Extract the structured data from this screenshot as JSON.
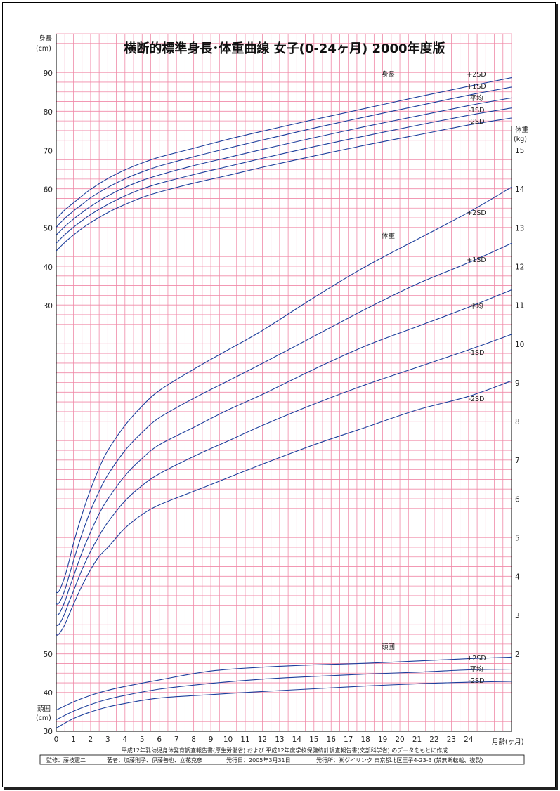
{
  "title": "横断的標準身長･体重曲線 女子(0-24ヶ月) 2000年度版",
  "axes": {
    "length_label_1": "身長",
    "length_label_2": "(cm)",
    "weight_label_1": "体重",
    "weight_label_2": "(kg)",
    "head_label_1": "頭囲",
    "head_label_2": "(cm)",
    "x_label": "月齢(ヶ月)"
  },
  "footer": {
    "line1": "平成12年乳幼児身体発育調査報告書(厚生労働省) および 平成12年度学校保健統計調査報告書(文部科学省) のデータをもとに作成",
    "supervisor": "監修：藤枝憲二",
    "authors": "著者：加藤則子、伊藤善也、立花克彦",
    "date": "発行日：2005年3月31日",
    "publisher": "発行所：㈱ヴイリンク 東京都北区王子4-23-3 (禁無断転載、複製)"
  },
  "colors": {
    "grid": "#f08aa8",
    "curve": "#1d3f9c",
    "frame": "#000000"
  },
  "chart_data": {
    "type": "line",
    "title": "横断的標準身長･体重曲線 女子(0-24ヶ月) 2000年度版",
    "x_label": "月齢(ヶ月)",
    "x_ticks": [
      "0",
      "1",
      "2",
      "3",
      "4",
      "5",
      "6",
      "7",
      "8",
      "9",
      "10",
      "11",
      "12",
      "13",
      "14",
      "15",
      "16",
      "17",
      "18",
      "19",
      "20",
      "21",
      "22",
      "23",
      "24"
    ],
    "xlim": [
      0,
      26.5
    ],
    "grid": true,
    "panels": [
      {
        "name": "身長",
        "unit": "(cm)",
        "ylim": [
          30,
          95
        ],
        "y_ticks": [
          "30",
          "40",
          "50",
          "60",
          "70",
          "80",
          "90"
        ],
        "x": [
          0,
          0.5,
          1,
          1.5,
          2,
          3,
          4,
          5,
          6,
          8,
          10,
          12,
          15,
          18,
          21,
          24,
          26.5
        ],
        "series": [
          {
            "name": "+2SD",
            "values": [
              52.4,
              54.7,
              56.5,
              58.3,
              60.0,
              62.8,
              65.0,
              66.8,
              68.3,
              70.6,
              72.9,
              75.0,
              78.0,
              80.9,
              83.8,
              86.6,
              88.8
            ]
          },
          {
            "name": "+1SD",
            "values": [
              50.2,
              52.5,
              54.4,
              56.1,
              57.8,
              60.5,
              62.7,
              64.5,
              66.0,
              68.4,
              70.6,
              72.7,
              75.8,
              78.7,
              81.5,
              84.3,
              86.4
            ]
          },
          {
            "name": "平均",
            "values": [
              48.2,
              50.4,
              52.3,
              54.0,
              55.6,
              58.3,
              60.5,
              62.3,
              63.7,
              66.1,
              68.2,
              70.3,
              73.3,
              76.2,
              78.9,
              81.6,
              83.6
            ]
          },
          {
            "name": "-1SD",
            "values": [
              46.1,
              48.3,
              50.2,
              51.9,
              53.5,
              56.1,
              58.3,
              60.1,
              61.5,
              63.8,
              65.9,
              68.0,
              71.0,
              73.8,
              76.5,
              79.1,
              81.0
            ]
          },
          {
            "name": "-2SD",
            "values": [
              44.1,
              46.3,
              48.2,
              49.9,
              51.4,
              54.0,
              56.1,
              57.9,
              59.3,
              61.6,
              63.6,
              65.7,
              68.6,
              71.4,
              74.0,
              76.6,
              78.4
            ]
          }
        ]
      },
      {
        "name": "体重",
        "unit": "(kg)",
        "ylim": [
          1.8,
          15.5
        ],
        "y_ticks": [
          "2",
          "3",
          "4",
          "5",
          "6",
          "7",
          "8",
          "9",
          "10",
          "11",
          "12",
          "13",
          "14",
          "15"
        ],
        "x": [
          0,
          0.1,
          0.25,
          0.5,
          0.75,
          1,
          1.5,
          2,
          2.5,
          3,
          4,
          5,
          6,
          8,
          10,
          12,
          15,
          18,
          21,
          24,
          26.5
        ],
        "series": [
          {
            "name": "+2SD",
            "values": [
              3.6,
              3.59,
              3.7,
              4.0,
              4.4,
              4.85,
              5.6,
              6.25,
              6.8,
              7.25,
              7.9,
              8.4,
              8.8,
              9.35,
              9.85,
              10.35,
              11.2,
              12.0,
              12.7,
              13.4,
              14.05
            ]
          },
          {
            "name": "+1SD",
            "values": [
              3.3,
              3.29,
              3.38,
              3.65,
              4.02,
              4.4,
              5.1,
              5.7,
              6.2,
              6.62,
              7.25,
              7.72,
              8.1,
              8.6,
              9.05,
              9.5,
              10.2,
              10.9,
              11.55,
              12.1,
              12.6
            ]
          },
          {
            "name": "平均",
            "values": [
              3.02,
              3.01,
              3.1,
              3.35,
              3.68,
              4.0,
              4.62,
              5.15,
              5.62,
              6.0,
              6.6,
              7.05,
              7.4,
              7.85,
              8.3,
              8.7,
              9.35,
              9.95,
              10.45,
              10.95,
              11.4
            ]
          },
          {
            "name": "-1SD",
            "values": [
              2.75,
              2.74,
              2.82,
              3.05,
              3.35,
              3.62,
              4.18,
              4.65,
              5.05,
              5.4,
              5.95,
              6.35,
              6.65,
              7.1,
              7.5,
              7.9,
              8.45,
              8.95,
              9.4,
              9.85,
              10.25
            ]
          },
          {
            "name": "-2SD",
            "values": [
              2.5,
              2.49,
              2.57,
              2.76,
              3.02,
              3.28,
              3.76,
              4.18,
              4.52,
              4.75,
              5.25,
              5.6,
              5.85,
              6.2,
              6.55,
              6.9,
              7.4,
              7.85,
              8.3,
              8.65,
              9.05
            ]
          }
        ]
      },
      {
        "name": "頭囲",
        "unit": "(cm)",
        "ylim": [
          30,
          52
        ],
        "y_ticks": [
          "30",
          "40",
          "50"
        ],
        "x": [
          0,
          1,
          2,
          3,
          4,
          6,
          9,
          12,
          15,
          18,
          21,
          24,
          26.5
        ],
        "series": [
          {
            "name": "+2SD",
            "values": [
              35.5,
              37.6,
              39.3,
              40.6,
              41.6,
              43.3,
              45.6,
              46.6,
              47.2,
              47.6,
              48.2,
              48.8,
              49.2
            ]
          },
          {
            "name": "平均",
            "values": [
              33.0,
              35.2,
              36.9,
              38.3,
              39.3,
              40.9,
              42.4,
              43.5,
              44.2,
              44.8,
              45.3,
              45.9,
              46.1
            ]
          },
          {
            "name": "-2SD",
            "values": [
              30.8,
              33.3,
              35.0,
              36.3,
              37.2,
              38.6,
              39.5,
              40.3,
              41.0,
              41.7,
              42.3,
              42.7,
              42.9
            ]
          }
        ]
      }
    ]
  }
}
